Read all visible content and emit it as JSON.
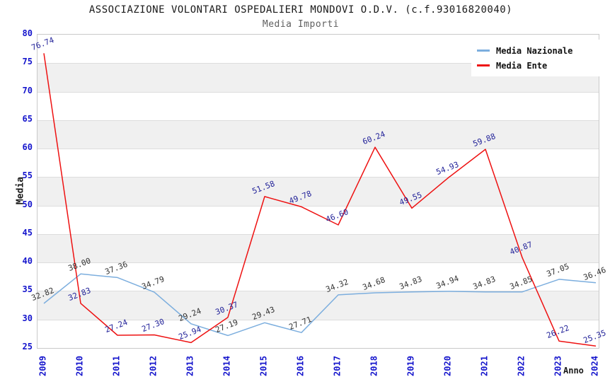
{
  "header": {
    "title": "ASSOCIAZIONE VOLONTARI OSPEDALIERI MONDOVI O.D.V. (c.f.93016820040)",
    "subtitle": "Media Importi"
  },
  "chart_data": {
    "type": "line",
    "title": "ASSOCIAZIONE VOLONTARI OSPEDALIERI MONDOVI O.D.V. (c.f.93016820040)",
    "subtitle": "Media Importi",
    "xlabel": "Anno",
    "ylabel": "Media",
    "x": [
      "2009",
      "2010",
      "2011",
      "2012",
      "2013",
      "2014",
      "2015",
      "2016",
      "2017",
      "2018",
      "2019",
      "2020",
      "2021",
      "2022",
      "2023",
      "2024"
    ],
    "series": [
      {
        "name": "Media Nazionale",
        "color": "#7caede",
        "label_color": "#333333",
        "values": [
          32.82,
          38.0,
          37.36,
          34.79,
          29.24,
          27.19,
          29.43,
          27.71,
          34.32,
          34.68,
          34.83,
          34.94,
          34.83,
          34.85,
          37.05,
          36.46
        ]
      },
      {
        "name": "Media Ente",
        "color": "#ee1111",
        "label_color": "#222299",
        "values": [
          76.74,
          32.83,
          27.24,
          27.3,
          25.94,
          30.37,
          51.58,
          49.78,
          46.6,
          60.24,
          49.55,
          54.93,
          59.88,
          40.87,
          26.22,
          25.35
        ]
      }
    ],
    "ylim": [
      25,
      80
    ],
    "yticks": [
      25,
      30,
      35,
      40,
      45,
      50,
      55,
      60,
      65,
      70,
      75,
      80
    ],
    "grid": "horizontal-bands",
    "band_ranges": [
      [
        30,
        35
      ],
      [
        40,
        45
      ],
      [
        50,
        55
      ],
      [
        60,
        65
      ],
      [
        70,
        75
      ]
    ],
    "band_fill": "#f0f0f0",
    "gridline_color": "#dddddd",
    "axis_tick_color": "#1414cc",
    "legend_position": "top-right",
    "legend": [
      "Media Nazionale",
      "Media Ente"
    ]
  }
}
